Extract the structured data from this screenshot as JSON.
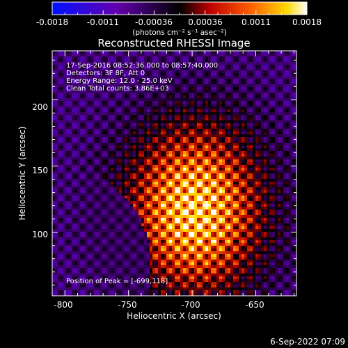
{
  "colorbar": {
    "ticks": [
      "-0.0018",
      "-0.0011",
      "-0.00036",
      "0.00036",
      "0.0011",
      "0.0018"
    ],
    "units": "(photons cm⁻² s⁻¹ asec⁻²)"
  },
  "image": {
    "title": "Reconstructed RHESSI Image",
    "info_lines": [
      "17-Sep-2016 08:52:36.000 to 08:57:40.000",
      "Detectors: 3F 8F, Att 0",
      "Energy Range: 12.0 - 25.0 keV",
      "Clean     Total counts: 3.86E+03"
    ],
    "peak": "Position of Peak = [-699,118]"
  },
  "chart_data": {
    "type": "heatmap",
    "title": "Reconstructed RHESSI Image",
    "xlabel": "Heliocentric X (arcsec)",
    "ylabel": "Heliocentric Y (arcsec)",
    "x_ticks": [
      "-800",
      "-750",
      "-700",
      "-650"
    ],
    "y_ticks": [
      "100",
      "150",
      "200"
    ],
    "x_tick_values": [
      -800,
      -750,
      -700,
      -650
    ],
    "y_tick_values": [
      100,
      150,
      200
    ],
    "xlim": [
      -810,
      -618
    ],
    "ylim": [
      52,
      237
    ],
    "colorbar_range": [
      -0.0018,
      0.0018
    ],
    "peak": [
      -699,
      118
    ]
  },
  "footer": {
    "date": "6-Sep-2022 07:09"
  },
  "colors": {
    "background": "#000000",
    "foreground": "#ffffff",
    "colormap": [
      "#0000ff",
      "#5a00a0",
      "#000000",
      "#b00000",
      "#ff5a00",
      "#ffe000",
      "#ffffff"
    ]
  }
}
